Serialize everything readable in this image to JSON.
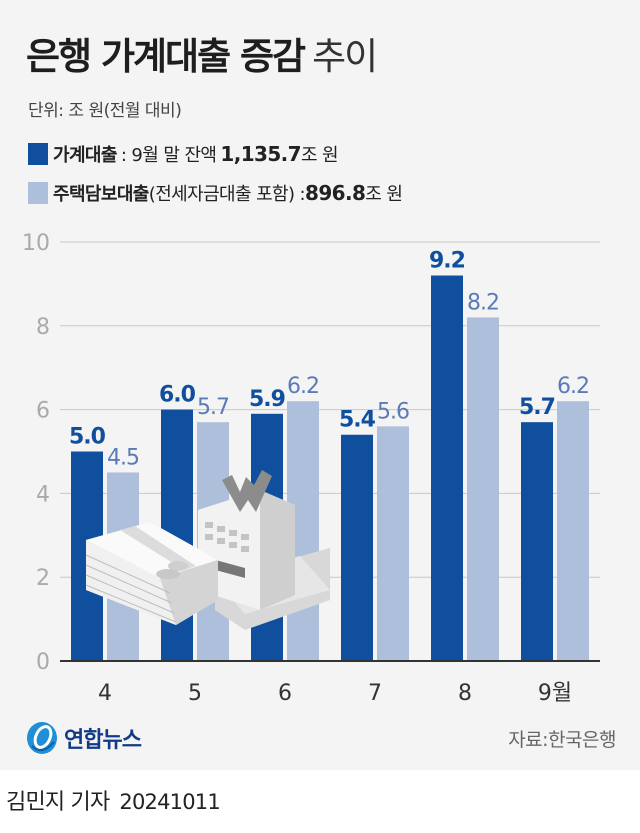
{
  "header": {
    "title_bold": "은행 가계대출 증감",
    "title_light": "추이",
    "unit": "단위: 조 원(전월 대비)"
  },
  "legend": [
    {
      "name": "가계대출",
      "color": "#0f4f9e",
      "desc": ": 9월 말 잔액",
      "value": "1,135.7",
      "suffix": "조 원"
    },
    {
      "name": "주택담보대출",
      "color": "#aebfdc",
      "desc": "(전세자금대출 포함) : ",
      "value": "896.8",
      "suffix": "조 원"
    }
  ],
  "colors": {
    "dark_bar": "#0f4f9e",
    "light_bar": "#aebfdc",
    "dark_label": "#0f4f9e",
    "light_label": "#5b7bb7",
    "grid": "#c8c8c8",
    "axis": "#333333",
    "tick_label": "#aaaaaa",
    "background": "#f4f4f4"
  },
  "chart_data": {
    "type": "bar",
    "title": "은행 가계대출 증감 추이",
    "subtitle": "단위: 조 원(전월 대비)",
    "categories": [
      "4",
      "5",
      "6",
      "7",
      "8",
      "9월"
    ],
    "series": [
      {
        "name": "가계대출",
        "values": [
          5.0,
          6.0,
          5.9,
          5.4,
          9.2,
          5.7
        ]
      },
      {
        "name": "주택담보대출(전세자금대출 포함)",
        "values": [
          4.5,
          5.7,
          6.2,
          5.6,
          8.2,
          6.2
        ]
      }
    ],
    "labels": [
      [
        "5.0",
        "6.0",
        "5.9",
        "5.4",
        "9.2",
        "5.7"
      ],
      [
        "4.5",
        "5.7",
        "6.2",
        "5.6",
        "8.2",
        "6.2"
      ]
    ],
    "xlabel": "",
    "ylabel": "",
    "ylim": [
      0,
      10
    ],
    "yticks": [
      "0",
      "2",
      "4",
      "6",
      "8",
      "10"
    ],
    "grid": true,
    "legend_position": "top-left"
  },
  "footer": {
    "logo_text": "연합뉴스",
    "source": "자료:한국은행",
    "reporter": "김민지 기자",
    "date": "20241011"
  }
}
